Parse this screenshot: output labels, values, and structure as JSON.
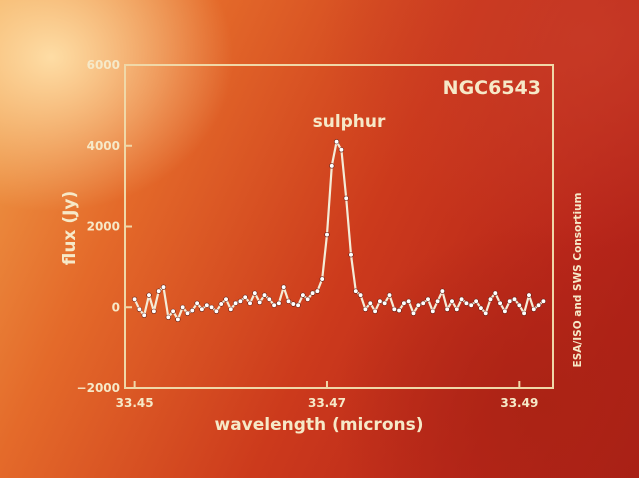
{
  "chart_data": {
    "type": "line",
    "title": "NGC6543",
    "annotation": "sulphur",
    "xlabel": "wavelength (microns)",
    "ylabel": "flux (Jy)",
    "credit": "ESA/ISO and SWS Consortium",
    "xlim": [
      33.449,
      33.4935
    ],
    "ylim": [
      -2000,
      6000
    ],
    "xticks": [
      {
        "value": 33.45,
        "label": "33.45"
      },
      {
        "value": 33.47,
        "label": "33.47"
      },
      {
        "value": 33.49,
        "label": "33.49"
      }
    ],
    "yticks": [
      {
        "value": 6000,
        "label": "6000"
      },
      {
        "value": 4000,
        "label": "4000"
      },
      {
        "value": 2000,
        "label": "2000"
      },
      {
        "value": 0,
        "label": "0"
      },
      {
        "value": -2000,
        "label": "−2000"
      }
    ],
    "grid": false,
    "colors": {
      "axis": "#f0d8a8",
      "line": "#f4ecd8",
      "marker": "#ffffff"
    },
    "series": [
      {
        "x": [
          33.45,
          33.4505,
          33.451,
          33.4515,
          33.452,
          33.4525,
          33.453,
          33.4535,
          33.454,
          33.4545,
          33.455,
          33.4555,
          33.456,
          33.4565,
          33.457,
          33.4575,
          33.458,
          33.4585,
          33.459,
          33.4595,
          33.46,
          33.4605,
          33.461,
          33.4615,
          33.462,
          33.4625,
          33.463,
          33.4635,
          33.464,
          33.4645,
          33.465,
          33.4655,
          33.466,
          33.4665,
          33.467,
          33.4675,
          33.468,
          33.4685,
          33.469,
          33.4695,
          33.47,
          33.4705,
          33.471,
          33.4715,
          33.472,
          33.4725,
          33.473,
          33.4735,
          33.474,
          33.4745,
          33.475,
          33.4755,
          33.476,
          33.4765,
          33.477,
          33.4775,
          33.478,
          33.4785,
          33.479,
          33.4795,
          33.48,
          33.4805,
          33.481,
          33.4815,
          33.482,
          33.4825,
          33.483,
          33.4835,
          33.484,
          33.4845,
          33.485,
          33.4855,
          33.486,
          33.4865,
          33.487,
          33.4875,
          33.488,
          33.4885,
          33.489,
          33.4895,
          33.49,
          33.4905,
          33.491,
          33.4915,
          33.492,
          33.4925
        ],
        "values": [
          200,
          -50,
          -200,
          300,
          -100,
          400,
          500,
          -250,
          -100,
          -300,
          0,
          -150,
          -80,
          100,
          -50,
          50,
          0,
          -100,
          80,
          200,
          -50,
          100,
          150,
          250,
          100,
          350,
          120,
          300,
          200,
          50,
          100,
          500,
          150,
          80,
          50,
          300,
          200,
          350,
          400,
          700,
          1800,
          3500,
          4100,
          3900,
          2700,
          1300,
          400,
          300,
          -50,
          100,
          -100,
          150,
          100,
          300,
          -50,
          -80,
          100,
          150,
          -150,
          50,
          100,
          200,
          -100,
          150,
          400,
          -50,
          150,
          -50,
          200,
          100,
          50,
          150,
          -20,
          -150,
          200,
          350,
          100,
          -100,
          150,
          200,
          50,
          -150,
          300,
          -50,
          50,
          150
        ]
      }
    ]
  }
}
